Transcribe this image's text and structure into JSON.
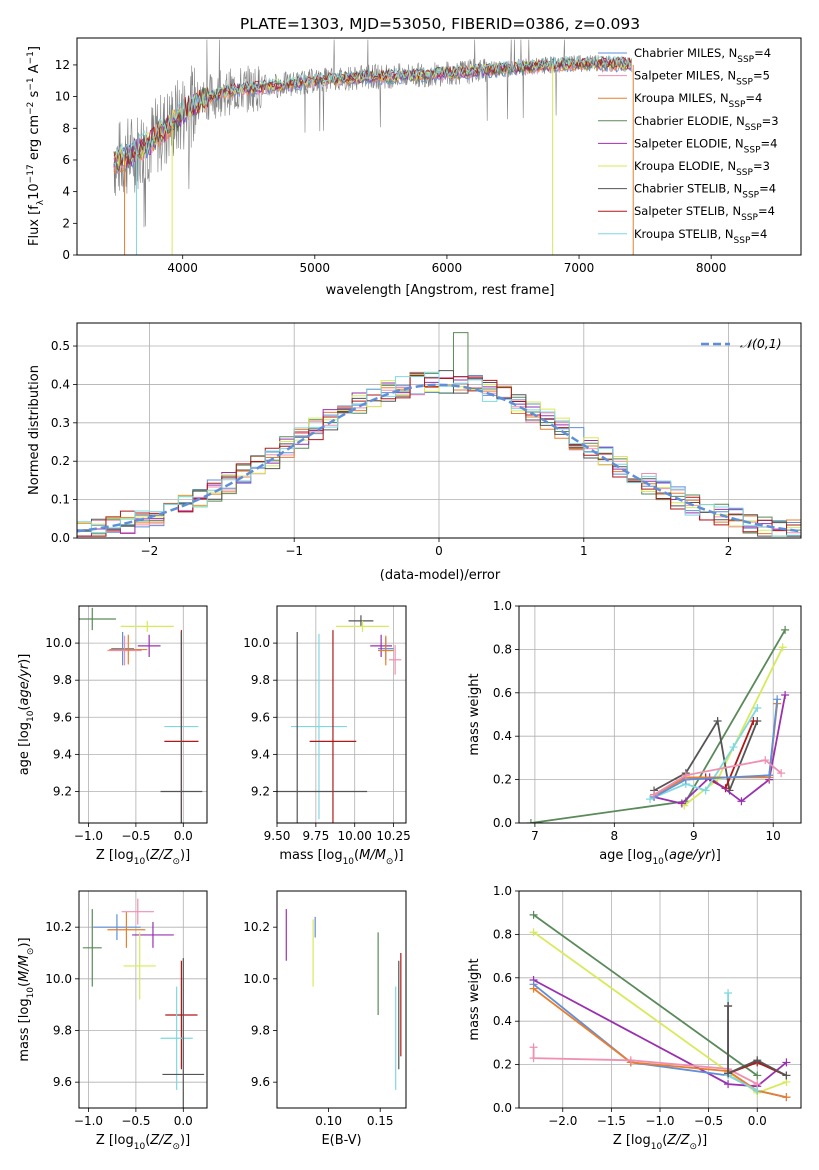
{
  "chart_data": [
    {
      "type": "line",
      "title": "PLATE=1303, MJD=53050, FIBERID=0386, z=0.093",
      "xlabel": "wavelength [Angstrom, rest frame]",
      "ylabel": "Flux [f_λ10^-17 erg cm^-2 s^-1 A^-1]",
      "xlim": [
        3200,
        8680
      ],
      "ylim": [
        0,
        13.7
      ],
      "xticks": [
        4000,
        5000,
        6000,
        7000,
        8000
      ],
      "yticks": [
        0,
        2,
        4,
        6,
        8,
        10,
        12
      ],
      "grid": false,
      "legend_position": "top-right",
      "data_color": "#808080",
      "continuum": [
        [
          3480,
          5.9
        ],
        [
          3600,
          6.3
        ],
        [
          3750,
          7.1
        ],
        [
          3900,
          8.2
        ],
        [
          4050,
          9.3
        ],
        [
          4200,
          10.0
        ],
        [
          4400,
          10.4
        ],
        [
          4700,
          10.7
        ],
        [
          5000,
          11.0
        ],
        [
          5300,
          11.2
        ],
        [
          5600,
          11.3
        ],
        [
          5900,
          11.4
        ],
        [
          6200,
          11.6
        ],
        [
          6500,
          11.8
        ],
        [
          6800,
          12.0
        ],
        [
          7100,
          12.1
        ],
        [
          7400,
          12.0
        ]
      ],
      "series": [
        {
          "name": "Chabrier MILES",
          "nssp": "4",
          "color": "#5f8fd8"
        },
        {
          "name": "Salpeter MILES",
          "nssp": "5",
          "color": "#f08fb0"
        },
        {
          "name": "Kroupa MILES",
          "nssp": "4",
          "color": "#e87e2e"
        },
        {
          "name": "Chabrier ELODIE",
          "nssp": "3",
          "color": "#5a8a5a"
        },
        {
          "name": "Salpeter ELODIE",
          "nssp": "4",
          "color": "#9a30b0"
        },
        {
          "name": "Kroupa ELODIE",
          "nssp": "3",
          "color": "#d8ea5a"
        },
        {
          "name": "Chabrier STELIB",
          "nssp": "4",
          "color": "#555555"
        },
        {
          "name": "Salpeter STELIB",
          "nssp": "4",
          "color": "#b01818"
        },
        {
          "name": "Kroupa STELIB",
          "nssp": "4",
          "color": "#7fd8e0"
        }
      ]
    },
    {
      "type": "line",
      "xlabel": "(data-model)/error",
      "ylabel": "Normed distribution",
      "xlim": [
        -2.5,
        2.5
      ],
      "ylim": [
        0,
        0.56
      ],
      "xticks": [
        -2,
        -1,
        0,
        1,
        2
      ],
      "yticks": [
        0.0,
        0.1,
        0.2,
        0.3,
        0.4,
        0.5
      ],
      "grid": true,
      "legend_position": "top-right",
      "reference": {
        "name": "𝒩(0,1)",
        "color": "#5f8fd8",
        "dashed": true
      },
      "bins": 50,
      "peak_bin_value": 0.535
    },
    {
      "type": "scatter",
      "xlabel": "Z [log10(Z/Z⊙)]",
      "ylabel": "age  [log10(age/yr)]",
      "xlim": [
        -1.1,
        0.25
      ],
      "ylim": [
        9.03,
        10.2
      ],
      "xticks": [
        -1.0,
        -0.5,
        0.0
      ],
      "yticks": [
        9.2,
        9.4,
        9.6,
        9.8,
        10.0
      ],
      "grid": true,
      "points": [
        {
          "x": -0.96,
          "y": 10.13,
          "xerr": 0.25,
          "yerr": 0.06,
          "c": "#5a8a5a"
        },
        {
          "x": -0.38,
          "y": 10.09,
          "xerr": 0.28,
          "yerr": 0.03,
          "c": "#d8ea5a"
        },
        {
          "x": -0.64,
          "y": 9.97,
          "xerr": 0.12,
          "yerr": 0.09,
          "c": "#5f8fd8"
        },
        {
          "x": -0.62,
          "y": 9.96,
          "xerr": 0.18,
          "yerr": 0.08,
          "c": "#f08fb0"
        },
        {
          "x": -0.58,
          "y": 9.965,
          "xerr": 0.2,
          "yerr": 0.08,
          "c": "#e87e2e"
        },
        {
          "x": -0.36,
          "y": 9.985,
          "xerr": 0.12,
          "yerr": 0.06,
          "c": "#9a30b0"
        },
        {
          "x": -0.02,
          "y": 9.55,
          "xerr": 0.18,
          "yerr": 0.5,
          "c": "#7fd8e0"
        },
        {
          "x": -0.02,
          "y": 9.47,
          "xerr": 0.18,
          "yerr": 0.6,
          "c": "#b01818"
        },
        {
          "x": -0.02,
          "y": 9.2,
          "xerr": 0.22,
          "yerr": 0.86,
          "c": "#555555"
        }
      ]
    },
    {
      "type": "scatter",
      "xlabel": "mass [log10(M/M⊙)]",
      "ylabel": "",
      "xlim": [
        9.5,
        10.33
      ],
      "ylim": [
        9.03,
        10.2
      ],
      "xticks": [
        9.5,
        9.75,
        10.0,
        10.25
      ],
      "yticks": [
        9.2,
        9.4,
        9.6,
        9.8,
        10.0
      ],
      "grid": true,
      "points": [
        {
          "x": 10.04,
          "y": 10.12,
          "xerr": 0.08,
          "yerr": 0.03,
          "c": "#555555"
        },
        {
          "x": 10.05,
          "y": 10.09,
          "xerr": 0.17,
          "yerr": 0.03,
          "c": "#d8ea5a"
        },
        {
          "x": 10.2,
          "y": 9.97,
          "xerr": 0.05,
          "yerr": 0.06,
          "c": "#5f8fd8"
        },
        {
          "x": 10.17,
          "y": 9.985,
          "xerr": 0.07,
          "yerr": 0.06,
          "c": "#9a30b0"
        },
        {
          "x": 10.2,
          "y": 9.96,
          "xerr": 0.05,
          "yerr": 0.08,
          "c": "#e87e2e"
        },
        {
          "x": 10.26,
          "y": 9.91,
          "xerr": 0.04,
          "yerr": 0.08,
          "c": "#f08fb0"
        },
        {
          "x": 9.77,
          "y": 9.55,
          "xerr": 0.18,
          "yerr": 0.5,
          "c": "#7fd8e0"
        },
        {
          "x": 9.86,
          "y": 9.47,
          "xerr": 0.15,
          "yerr": 0.6,
          "c": "#b01818"
        },
        {
          "x": 9.63,
          "y": 9.2,
          "xerr": 0.45,
          "yerr": 0.86,
          "c": "#555555"
        }
      ]
    },
    {
      "type": "line",
      "xlabel": "age  [log10(age/yr)]",
      "ylabel": "mass weight",
      "xlim": [
        6.8,
        10.35
      ],
      "ylim": [
        0,
        1.0
      ],
      "xticks": [
        7,
        8,
        9,
        10
      ],
      "yticks": [
        0.0,
        0.2,
        0.4,
        0.6,
        0.8,
        1.0
      ],
      "grid": true,
      "series": [
        {
          "c": "#5a8a5a",
          "pts": [
            [
              6.95,
              0.0
            ],
            [
              8.9,
              0.1
            ],
            [
              10.15,
              0.89
            ]
          ]
        },
        {
          "c": "#d8ea5a",
          "pts": [
            [
              8.88,
              0.08
            ],
            [
              9.3,
              0.2
            ],
            [
              10.12,
              0.81
            ]
          ]
        },
        {
          "c": "#555555",
          "pts": [
            [
              8.5,
              0.15
            ],
            [
              8.9,
              0.23
            ],
            [
              9.3,
              0.47
            ],
            [
              9.45,
              0.15
            ],
            [
              9.8,
              0.47
            ]
          ]
        },
        {
          "c": "#b01818",
          "pts": [
            [
              8.5,
              0.13
            ],
            [
              8.9,
              0.21
            ],
            [
              9.15,
              0.21
            ],
            [
              9.4,
              0.16
            ],
            [
              9.75,
              0.47
            ]
          ]
        },
        {
          "c": "#9a30b0",
          "pts": [
            [
              8.5,
              0.12
            ],
            [
              8.85,
              0.09
            ],
            [
              9.2,
              0.21
            ],
            [
              9.6,
              0.1
            ],
            [
              9.95,
              0.2
            ],
            [
              10.15,
              0.59
            ]
          ]
        },
        {
          "c": "#7fd8e0",
          "pts": [
            [
              8.45,
              0.11
            ],
            [
              8.9,
              0.18
            ],
            [
              9.15,
              0.15
            ],
            [
              9.5,
              0.35
            ],
            [
              9.8,
              0.53
            ]
          ]
        },
        {
          "c": "#e87e2e",
          "pts": [
            [
              8.5,
              0.13
            ],
            [
              8.9,
              0.21
            ],
            [
              9.95,
              0.21
            ],
            [
              10.05,
              0.55
            ]
          ]
        },
        {
          "c": "#5f8fd8",
          "pts": [
            [
              8.5,
              0.12
            ],
            [
              8.9,
              0.2
            ],
            [
              9.95,
              0.22
            ],
            [
              10.05,
              0.57
            ]
          ]
        },
        {
          "c": "#f08fb0",
          "pts": [
            [
              8.5,
              0.13
            ],
            [
              8.9,
              0.22
            ],
            [
              9.9,
              0.29
            ],
            [
              10.1,
              0.23
            ]
          ]
        }
      ]
    },
    {
      "type": "scatter",
      "xlabel": "Z [log10(Z/Z⊙)]",
      "ylabel": "mass [log10(M/M⊙)]",
      "xlim": [
        -1.1,
        0.25
      ],
      "ylim": [
        9.5,
        10.34
      ],
      "xticks": [
        -1.0,
        -0.5,
        0.0
      ],
      "yticks": [
        9.6,
        9.8,
        10.0,
        10.2
      ],
      "grid": true,
      "points": [
        {
          "x": -0.96,
          "y": 10.12,
          "xerr": 0.1,
          "yerr": 0.15,
          "c": "#5a8a5a"
        },
        {
          "x": -0.7,
          "y": 10.2,
          "xerr": 0.25,
          "yerr": 0.05,
          "c": "#5f8fd8"
        },
        {
          "x": -0.6,
          "y": 10.19,
          "xerr": 0.2,
          "yerr": 0.07,
          "c": "#e87e2e"
        },
        {
          "x": -0.48,
          "y": 10.26,
          "xerr": 0.17,
          "yerr": 0.05,
          "c": "#f08fb0"
        },
        {
          "x": -0.32,
          "y": 10.17,
          "xerr": 0.22,
          "yerr": 0.05,
          "c": "#9a30b0"
        },
        {
          "x": -0.46,
          "y": 10.05,
          "xerr": 0.17,
          "yerr": 0.13,
          "c": "#d8ea5a"
        },
        {
          "x": -0.02,
          "y": 9.86,
          "xerr": 0.17,
          "yerr": 0.21,
          "c": "#b01818"
        },
        {
          "x": -0.07,
          "y": 9.77,
          "xerr": 0.17,
          "yerr": 0.2,
          "c": "#7fd8e0"
        },
        {
          "x": 0.0,
          "y": 9.63,
          "xerr": 0.22,
          "yerr": 0.45,
          "c": "#555555"
        }
      ]
    },
    {
      "type": "scatter",
      "xlabel": "E(B-V)",
      "ylabel": "",
      "xlim": [
        0.05,
        0.175
      ],
      "ylim": [
        9.5,
        10.34
      ],
      "xticks": [
        0.1,
        0.15
      ],
      "yticks": [
        9.6,
        9.8,
        10.0,
        10.2
      ],
      "grid": false,
      "points": [
        {
          "x": 0.059,
          "y": 10.17,
          "xerr": 0,
          "yerr": 0.1,
          "c": "#9a30b0"
        },
        {
          "x": 0.085,
          "y": 10.1,
          "xerr": 0,
          "yerr": 0.13,
          "c": "#d8ea5a"
        },
        {
          "x": 0.087,
          "y": 10.2,
          "xerr": 0,
          "yerr": 0.04,
          "c": "#5f8fd8"
        },
        {
          "x": 0.148,
          "y": 10.02,
          "xerr": 0,
          "yerr": 0.16,
          "c": "#5a8a5a"
        },
        {
          "x": 0.165,
          "y": 9.77,
          "xerr": 0,
          "yerr": 0.2,
          "c": "#7fd8e0"
        },
        {
          "x": 0.168,
          "y": 9.86,
          "xerr": 0,
          "yerr": 0.21,
          "c": "#555555"
        },
        {
          "x": 0.17,
          "y": 9.9,
          "xerr": 0,
          "yerr": 0.2,
          "c": "#b01818"
        }
      ]
    },
    {
      "type": "line",
      "xlabel": "Z [log10(Z/Z⊙)]",
      "ylabel": "mass weight",
      "xlim": [
        -2.45,
        0.45
      ],
      "ylim": [
        0,
        1.0
      ],
      "xticks": [
        -2.0,
        -1.5,
        -1.0,
        -0.5,
        0.0
      ],
      "yticks": [
        0.0,
        0.2,
        0.4,
        0.6,
        0.8,
        1.0
      ],
      "grid": true,
      "series": [
        {
          "c": "#5a8a5a",
          "pts": [
            [
              -2.3,
              0.89
            ],
            [
              0.0,
              0.15
            ]
          ]
        },
        {
          "c": "#d8ea5a",
          "pts": [
            [
              -2.3,
              0.81
            ],
            [
              0.0,
              0.07
            ],
            [
              0.3,
              0.12
            ]
          ]
        },
        {
          "c": "#9a30b0",
          "pts": [
            [
              -2.3,
              0.59
            ],
            [
              -0.3,
              0.11
            ],
            [
              0.0,
              0.1
            ],
            [
              0.3,
              0.21
            ]
          ]
        },
        {
          "c": "#5f8fd8",
          "pts": [
            [
              -2.3,
              0.57
            ],
            [
              -1.3,
              0.21
            ],
            [
              -0.3,
              0.15
            ],
            [
              0.0,
              0.08
            ],
            [
              0.3,
              0.05
            ]
          ]
        },
        {
          "c": "#e87e2e",
          "pts": [
            [
              -2.3,
              0.55
            ],
            [
              -1.3,
              0.21
            ],
            [
              -0.3,
              0.17
            ],
            [
              0.0,
              0.08
            ],
            [
              0.3,
              0.05
            ]
          ]
        },
        {
          "c": "#f08fb0",
          "pts": [
            [
              -2.3,
              0.28
            ],
            [
              -2.3,
              0.23
            ],
            [
              -1.3,
              0.22
            ],
            [
              -0.3,
              0.18
            ],
            [
              0.0,
              0.11
            ]
          ]
        },
        {
          "c": "#7fd8e0",
          "pts": [
            [
              -0.3,
              0.53
            ],
            [
              -0.3,
              0.15
            ],
            [
              0.0,
              0.08
            ]
          ]
        },
        {
          "c": "#b01818",
          "pts": [
            [
              -0.3,
              0.47
            ],
            [
              -0.3,
              0.16
            ],
            [
              0.0,
              0.21
            ],
            [
              0.3,
              0.15
            ]
          ]
        },
        {
          "c": "#555555",
          "pts": [
            [
              -0.3,
              0.47
            ],
            [
              -0.3,
              0.16
            ],
            [
              0.0,
              0.22
            ],
            [
              0.3,
              0.15
            ]
          ]
        }
      ]
    }
  ]
}
